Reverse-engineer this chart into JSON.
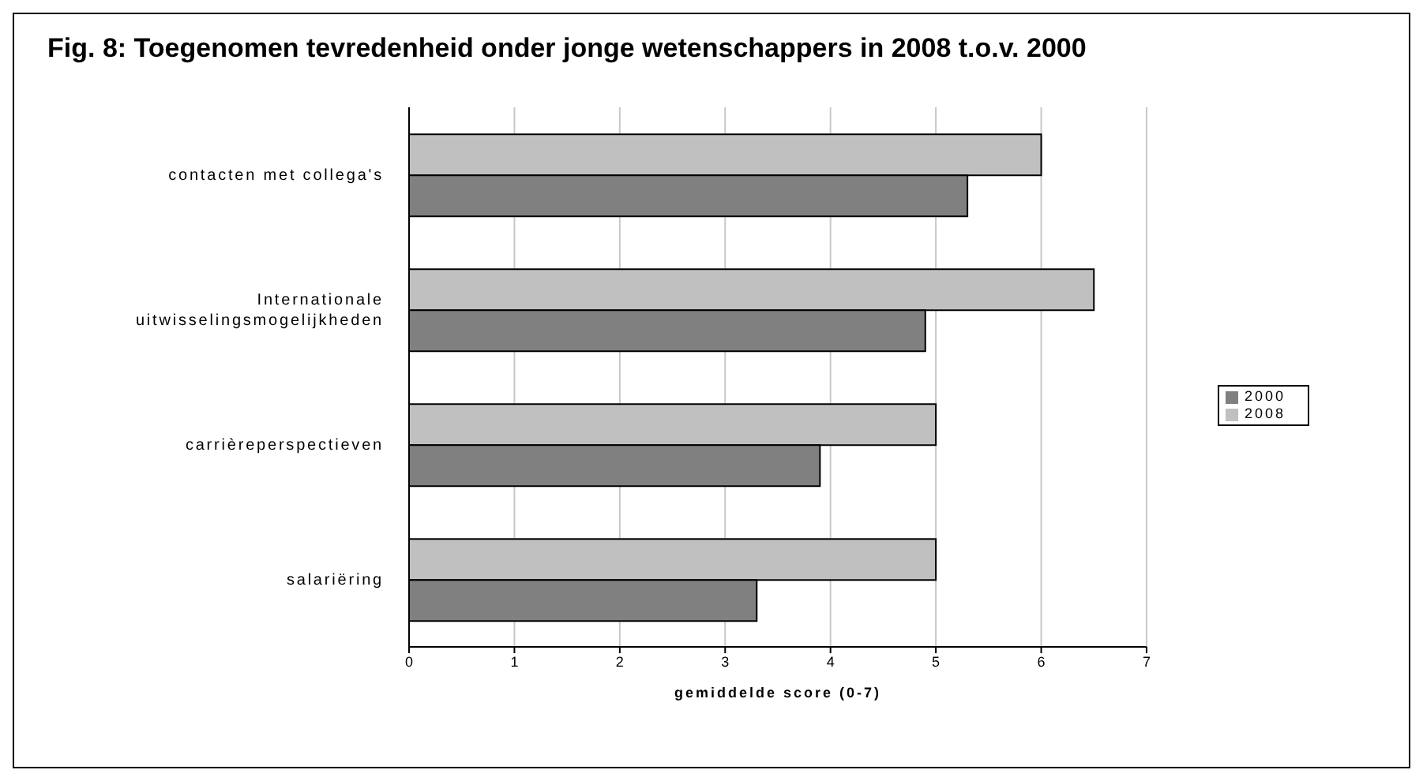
{
  "chart_data": {
    "type": "bar",
    "orientation": "horizontal",
    "title": "Fig. 8: Toegenomen tevredenheid onder jonge wetenschappers in 2008 t.o.v. 2000",
    "xlabel": "gemiddelde score (0-7)",
    "categories": [
      "contacten met collega's",
      "Internationale uitwisselingsmogelijkheden",
      "carrièreperspectieven",
      "salariëring"
    ],
    "series": [
      {
        "name": "2008",
        "color": "#c0c0c0",
        "values": [
          6,
          6.5,
          5,
          5
        ]
      },
      {
        "name": "2000",
        "color": "#808080",
        "values": [
          5.3,
          4.9,
          3.9,
          3.3
        ]
      }
    ],
    "xlim": [
      0,
      7
    ],
    "xticks": [
      0,
      1,
      2,
      3,
      4,
      5,
      6,
      7
    ],
    "grid": "x",
    "legend": "right"
  }
}
